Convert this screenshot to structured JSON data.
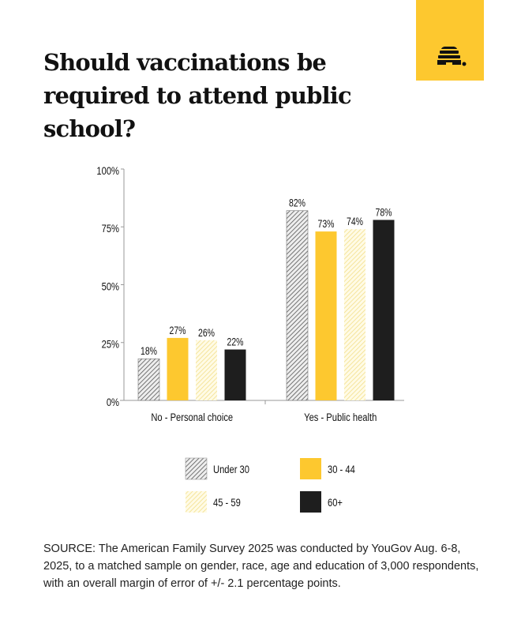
{
  "title": "Should vaccinations be required to attend public school?",
  "logo": {
    "icon": "beehive-icon",
    "color": "#fdc82f"
  },
  "chart_data": {
    "type": "bar",
    "categories": [
      "No - Personal choice",
      "Yes - Public health"
    ],
    "series": [
      {
        "name": "Under 30",
        "values": [
          18,
          82
        ],
        "style": "gray-hatch"
      },
      {
        "name": "30 - 44",
        "values": [
          27,
          73
        ],
        "color": "#fdc82f"
      },
      {
        "name": "45 - 59",
        "values": [
          26,
          74
        ],
        "style": "light-yellow-hatch"
      },
      {
        "name": "60+",
        "values": [
          22,
          78
        ],
        "color": "#1e1e1e"
      }
    ],
    "ylim": [
      0,
      100
    ],
    "yticks": [
      "0%",
      "25%",
      "50%",
      "75%",
      "100%"
    ],
    "ytick_values": [
      0,
      25,
      50,
      75,
      100
    ],
    "data_labels": [
      [
        "18%",
        "82%"
      ],
      [
        "27%",
        "73%"
      ],
      [
        "26%",
        "74%"
      ],
      [
        "22%",
        "78%"
      ]
    ],
    "legend": "bottom",
    "grid": false
  },
  "source": "SOURCE: The American Family Survey 2025 was conducted by YouGov Aug. 6-8, 2025, to a matched sample on gender, race, age and education of 3,000 respondents, with an overall margin of error of +/- 2.1 percentage points."
}
